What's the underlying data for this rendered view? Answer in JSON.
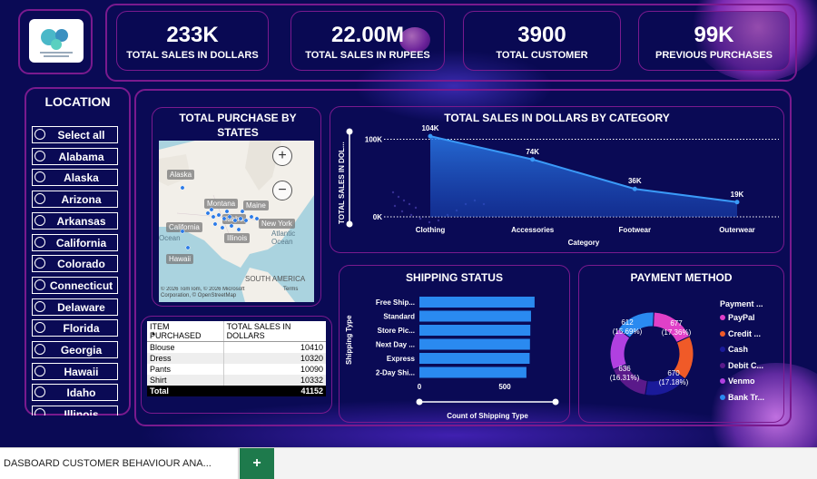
{
  "kpis": [
    {
      "value": "233K",
      "label": "TOTAL SALES IN DOLLARS"
    },
    {
      "value": "22.00M",
      "label": "TOTAL SALES IN RUPEES"
    },
    {
      "value": "3900",
      "label": "TOTAL CUSTOMER"
    },
    {
      "value": "99K",
      "label": "PREVIOUS PURCHASES"
    }
  ],
  "location": {
    "title": "LOCATION",
    "items": [
      "Select all",
      "Alabama",
      "Alaska",
      "Arizona",
      "Arkansas",
      "California",
      "Colorado",
      "Connecticut",
      "Delaware",
      "Florida",
      "Georgia",
      "Hawaii",
      "Idaho",
      "Illinois"
    ]
  },
  "map": {
    "title": "TOTAL PURCHASE BY STATES",
    "labels": [
      "Alaska",
      "Montana",
      "Maine",
      "Idaho",
      "New York",
      "California",
      "Illinois",
      "Hawaii"
    ],
    "ocean_left": "Ocean",
    "ocean_right_1": "Atlantic",
    "ocean_right_2": "Ocean",
    "south_america": "SOUTH AMERICA",
    "zoom_in": "+",
    "zoom_out": "−",
    "credit": "© 2026 TomTom, © 2026 Microsoft Corporation, © OpenStreetMap",
    "terms": "Terms"
  },
  "table": {
    "headers": [
      "ITEM PURCHASED",
      "TOTAL SALES IN DOLLARS"
    ],
    "rows": [
      [
        "Blouse",
        "10410"
      ],
      [
        "Dress",
        "10320"
      ],
      [
        "Pants",
        "10090"
      ],
      [
        "Shirt",
        "10332"
      ]
    ],
    "total": [
      "Total",
      "41152"
    ]
  },
  "area_chart": {
    "title": "TOTAL SALES IN DOLLARS BY CATEGORY",
    "ylabel": "TOTAL SALES IN DOL...",
    "xlabel": "Category",
    "y_ticks": [
      "100K",
      "0K"
    ],
    "y_tick_values": [
      100000,
      0
    ]
  },
  "shipping_chart": {
    "title": "SHIPPING STATUS",
    "ylabel": "Shipping Type",
    "xlabel": "Count of Shipping Type",
    "x_ticks": [
      "0",
      "500"
    ],
    "x_tick_values": [
      0,
      500
    ]
  },
  "payment_chart": {
    "title": "PAYMENT METHOD",
    "legend_title": "Payment ...",
    "legend": [
      {
        "name": "PayPal",
        "color": "#e040c8"
      },
      {
        "name": "Credit ...",
        "color": "#f05a28"
      },
      {
        "name": "Cash",
        "color": "#1a1a9a"
      },
      {
        "name": "Debit C...",
        "color": "#5a1a8a"
      },
      {
        "name": "Venmo",
        "color": "#b040e0"
      },
      {
        "name": "Bank Tr...",
        "color": "#2a8af0"
      }
    ],
    "labels": [
      {
        "value": "612",
        "pct": "(15.69%)"
      },
      {
        "value": "677",
        "pct": "(17.36%)"
      },
      {
        "value": "670",
        "pct": "(17.18%)"
      },
      {
        "value": "636",
        "pct": "(16.31%)"
      }
    ]
  },
  "chart_data": [
    {
      "type": "area",
      "title": "TOTAL SALES IN DOLLARS BY CATEGORY",
      "xlabel": "Category",
      "ylabel": "TOTAL SALES IN DOL...",
      "categories": [
        "Clothing",
        "Accessories",
        "Footwear",
        "Outerwear"
      ],
      "values": [
        104000,
        74000,
        36000,
        19000
      ],
      "data_labels": [
        "104K",
        "74K",
        "36K",
        "19K"
      ],
      "ylim": [
        0,
        110000
      ],
      "grid": true
    },
    {
      "type": "bar",
      "orientation": "horizontal",
      "title": "SHIPPING STATUS",
      "xlabel": "Count of Shipping Type",
      "ylabel": "Shipping Type",
      "categories": [
        "Free Ship...",
        "Standard",
        "Store Pic...",
        "Next Day ...",
        "Express",
        "2-Day Shi..."
      ],
      "values": [
        675,
        654,
        650,
        648,
        646,
        627
      ],
      "xlim": [
        0,
        700
      ]
    },
    {
      "type": "pie",
      "title": "PAYMENT METHOD",
      "categories": [
        "PayPal",
        "Credit Card",
        "Cash",
        "Debit Card",
        "Venmo",
        "Bank Transfer"
      ],
      "values": [
        677,
        671,
        670,
        636,
        634,
        612
      ],
      "colors": [
        "#e040c8",
        "#f05a28",
        "#1a1a9a",
        "#5a1a8a",
        "#b040e0",
        "#2a8af0"
      ],
      "legend": "right"
    }
  ],
  "taskbar": {
    "sheet_tab": "DASBOARD CUSTOMER BEHAVIOUR ANA...",
    "add_label": "+"
  }
}
